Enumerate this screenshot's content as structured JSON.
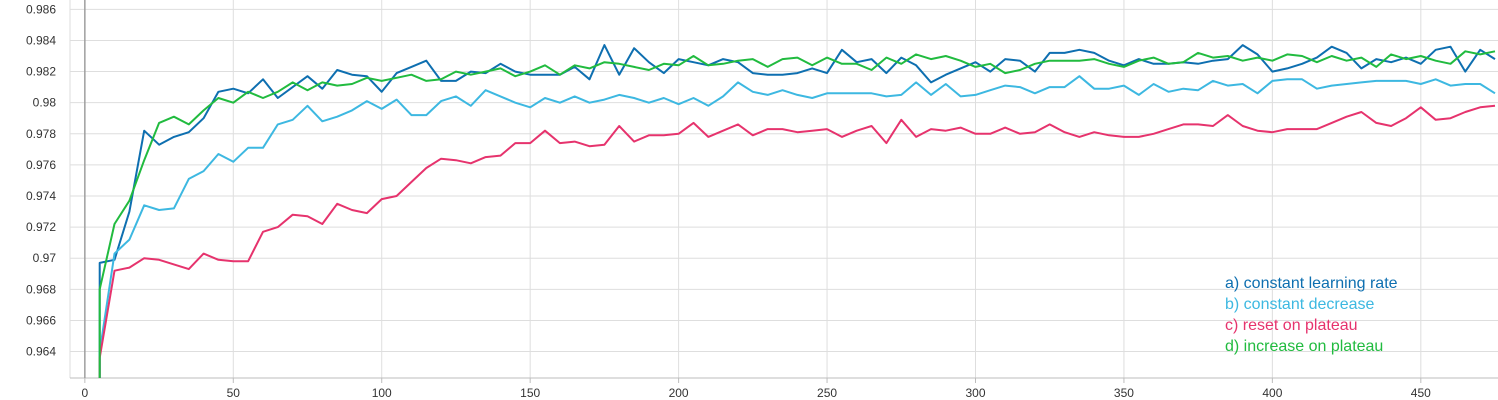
{
  "chart_data": {
    "type": "line",
    "xlim": [
      -5,
      476
    ],
    "ylim": [
      0.9623,
      0.9866
    ],
    "xticks": [
      "0",
      "50",
      "100",
      "150",
      "200",
      "250",
      "300",
      "350",
      "400",
      "450"
    ],
    "yticks": [
      "0.964",
      "0.966",
      "0.968",
      "0.97",
      "0.972",
      "0.974",
      "0.976",
      "0.978",
      "0.98",
      "0.982",
      "0.984",
      "0.986"
    ],
    "grid": true,
    "legend_position": "bottom-right",
    "series": [
      {
        "name": "a) constant learning rate",
        "color": "#0e6fb0",
        "x": [
          5,
          5,
          10,
          15,
          20,
          25,
          30,
          35,
          40,
          45,
          50,
          55,
          60,
          65,
          70,
          75,
          80,
          85,
          90,
          95,
          100,
          105,
          110,
          115,
          120,
          125,
          130,
          135,
          140,
          145,
          150,
          155,
          160,
          165,
          170,
          175,
          180,
          185,
          190,
          195,
          200,
          205,
          210,
          215,
          220,
          225,
          230,
          235,
          240,
          245,
          250,
          255,
          260,
          265,
          270,
          275,
          280,
          285,
          290,
          295,
          300,
          305,
          310,
          315,
          320,
          325,
          330,
          335,
          340,
          345,
          350,
          355,
          360,
          365,
          370,
          375,
          380,
          385,
          390,
          395,
          400,
          405,
          410,
          415,
          420,
          425,
          430,
          435,
          440,
          445,
          450,
          455,
          460,
          465,
          470,
          475
        ],
        "y": [
          0.9623,
          0.9697,
          0.9699,
          0.973,
          0.9782,
          0.9773,
          0.9778,
          0.9781,
          0.979,
          0.9807,
          0.9809,
          0.9806,
          0.9815,
          0.9803,
          0.981,
          0.9817,
          0.9809,
          0.9821,
          0.9818,
          0.9817,
          0.9807,
          0.9819,
          0.9823,
          0.9827,
          0.9814,
          0.9814,
          0.982,
          0.9819,
          0.9825,
          0.982,
          0.9818,
          0.9818,
          0.9818,
          0.9823,
          0.9815,
          0.9837,
          0.9818,
          0.9835,
          0.9826,
          0.9819,
          0.9828,
          0.9826,
          0.9824,
          0.9828,
          0.9826,
          0.9819,
          0.9818,
          0.9818,
          0.9819,
          0.9822,
          0.9819,
          0.9834,
          0.9826,
          0.9828,
          0.9819,
          0.9829,
          0.9824,
          0.9813,
          0.9818,
          0.9822,
          0.9826,
          0.982,
          0.9828,
          0.9827,
          0.982,
          0.9832,
          0.9832,
          0.9834,
          0.9832,
          0.9827,
          0.9824,
          0.9828,
          0.9825,
          0.9825,
          0.9826,
          0.9825,
          0.9827,
          0.9828,
          0.9837,
          0.9831,
          0.982,
          0.9822,
          0.9825,
          0.9829,
          0.9836,
          0.9832,
          0.9822,
          0.9828,
          0.9826,
          0.9829,
          0.9825,
          0.9834,
          0.9836,
          0.982,
          0.9834,
          0.9828
        ]
      },
      {
        "name": "b) constant decrease",
        "color": "#3db8e1",
        "x": [
          5,
          5,
          10,
          15,
          20,
          25,
          30,
          35,
          40,
          45,
          50,
          55,
          60,
          65,
          70,
          75,
          80,
          85,
          90,
          95,
          100,
          105,
          110,
          115,
          120,
          125,
          130,
          135,
          140,
          145,
          150,
          155,
          160,
          165,
          170,
          175,
          180,
          185,
          190,
          195,
          200,
          205,
          210,
          215,
          220,
          225,
          230,
          235,
          240,
          245,
          250,
          255,
          260,
          265,
          270,
          275,
          280,
          285,
          290,
          295,
          300,
          305,
          310,
          315,
          320,
          325,
          330,
          335,
          340,
          345,
          350,
          355,
          360,
          365,
          370,
          375,
          380,
          385,
          390,
          395,
          400,
          405,
          410,
          415,
          420,
          425,
          430,
          435,
          440,
          445,
          450,
          455,
          460,
          465,
          470,
          475
        ],
        "y": [
          0.9623,
          0.964,
          0.9703,
          0.9712,
          0.9734,
          0.9731,
          0.9732,
          0.9751,
          0.9756,
          0.9767,
          0.9762,
          0.9771,
          0.9771,
          0.9786,
          0.9789,
          0.9798,
          0.9788,
          0.9791,
          0.9795,
          0.9801,
          0.9796,
          0.9802,
          0.9792,
          0.9792,
          0.9801,
          0.9804,
          0.9798,
          0.9808,
          0.9804,
          0.98,
          0.9797,
          0.9803,
          0.98,
          0.9804,
          0.98,
          0.9802,
          0.9805,
          0.9803,
          0.98,
          0.9803,
          0.9799,
          0.9803,
          0.9798,
          0.9804,
          0.9813,
          0.9807,
          0.9805,
          0.9808,
          0.9805,
          0.9803,
          0.9806,
          0.9806,
          0.9806,
          0.9806,
          0.9804,
          0.9805,
          0.9813,
          0.9805,
          0.9812,
          0.9804,
          0.9805,
          0.9808,
          0.9811,
          0.981,
          0.9806,
          0.981,
          0.981,
          0.9817,
          0.9809,
          0.9809,
          0.9811,
          0.9805,
          0.9812,
          0.9807,
          0.9809,
          0.9808,
          0.9814,
          0.9811,
          0.9812,
          0.9806,
          0.9814,
          0.9815,
          0.9815,
          0.9809,
          0.9811,
          0.9812,
          0.9813,
          0.9814,
          0.9814,
          0.9814,
          0.9812,
          0.9815,
          0.9811,
          0.9812,
          0.9812,
          0.9806
        ]
      },
      {
        "name": "c) reset on plateau",
        "color": "#e6336d",
        "x": [
          5,
          5,
          10,
          15,
          20,
          25,
          30,
          35,
          40,
          45,
          50,
          55,
          60,
          65,
          70,
          75,
          80,
          85,
          90,
          95,
          100,
          105,
          110,
          115,
          120,
          125,
          130,
          135,
          140,
          145,
          150,
          155,
          160,
          165,
          170,
          175,
          180,
          185,
          190,
          195,
          200,
          205,
          210,
          215,
          220,
          225,
          230,
          235,
          240,
          245,
          250,
          255,
          260,
          265,
          270,
          275,
          280,
          285,
          290,
          295,
          300,
          305,
          310,
          315,
          320,
          325,
          330,
          335,
          340,
          345,
          350,
          355,
          360,
          365,
          370,
          375,
          380,
          385,
          390,
          395,
          400,
          405,
          410,
          415,
          420,
          425,
          430,
          435,
          440,
          445,
          450,
          455,
          460,
          465,
          470,
          475
        ],
        "y": [
          0.9623,
          0.9636,
          0.9692,
          0.9694,
          0.97,
          0.9699,
          0.9696,
          0.9693,
          0.9703,
          0.9699,
          0.9698,
          0.9698,
          0.9717,
          0.972,
          0.9728,
          0.9727,
          0.9722,
          0.9735,
          0.9731,
          0.9729,
          0.9738,
          0.974,
          0.9749,
          0.9758,
          0.9764,
          0.9763,
          0.9761,
          0.9765,
          0.9766,
          0.9774,
          0.9774,
          0.9782,
          0.9774,
          0.9775,
          0.9772,
          0.9773,
          0.9785,
          0.9775,
          0.9779,
          0.9779,
          0.978,
          0.9787,
          0.9778,
          0.9782,
          0.9786,
          0.9779,
          0.9783,
          0.9783,
          0.9781,
          0.9782,
          0.9783,
          0.9778,
          0.9782,
          0.9785,
          0.9774,
          0.9789,
          0.9778,
          0.9783,
          0.9782,
          0.9784,
          0.978,
          0.978,
          0.9784,
          0.978,
          0.9781,
          0.9786,
          0.9781,
          0.9778,
          0.9781,
          0.9779,
          0.9778,
          0.9778,
          0.978,
          0.9783,
          0.9786,
          0.9786,
          0.9785,
          0.9792,
          0.9785,
          0.9782,
          0.9781,
          0.9783,
          0.9783,
          0.9783,
          0.9787,
          0.9791,
          0.9794,
          0.9787,
          0.9785,
          0.979,
          0.9797,
          0.9789,
          0.979,
          0.9794,
          0.9797,
          0.9798
        ]
      },
      {
        "name": "d) increase on plateau",
        "color": "#21bb3f",
        "x": [
          5,
          5,
          10,
          15,
          20,
          25,
          30,
          35,
          40,
          45,
          50,
          55,
          60,
          65,
          70,
          75,
          80,
          85,
          90,
          95,
          100,
          105,
          110,
          115,
          120,
          125,
          130,
          135,
          140,
          145,
          150,
          155,
          160,
          165,
          170,
          175,
          180,
          185,
          190,
          195,
          200,
          205,
          210,
          215,
          220,
          225,
          230,
          235,
          240,
          245,
          250,
          255,
          260,
          265,
          270,
          275,
          280,
          285,
          290,
          295,
          300,
          305,
          310,
          315,
          320,
          325,
          330,
          335,
          340,
          345,
          350,
          355,
          360,
          365,
          370,
          375,
          380,
          385,
          390,
          395,
          400,
          405,
          410,
          415,
          420,
          425,
          430,
          435,
          440,
          445,
          450,
          455,
          460,
          465,
          470,
          475
        ],
        "y": [
          0.9623,
          0.968,
          0.9722,
          0.9737,
          0.9763,
          0.9787,
          0.9791,
          0.9786,
          0.9795,
          0.9803,
          0.98,
          0.9807,
          0.9803,
          0.9807,
          0.9813,
          0.9808,
          0.9813,
          0.9811,
          0.9812,
          0.9816,
          0.9814,
          0.9816,
          0.9818,
          0.9814,
          0.9815,
          0.982,
          0.9818,
          0.982,
          0.9822,
          0.9817,
          0.982,
          0.9824,
          0.9818,
          0.9824,
          0.9822,
          0.9826,
          0.9825,
          0.9823,
          0.9821,
          0.9825,
          0.9824,
          0.983,
          0.9824,
          0.9825,
          0.9827,
          0.9828,
          0.9823,
          0.9828,
          0.9829,
          0.9824,
          0.9829,
          0.9825,
          0.9825,
          0.9821,
          0.9829,
          0.9825,
          0.9831,
          0.9828,
          0.983,
          0.9827,
          0.9823,
          0.9825,
          0.9819,
          0.9821,
          0.9825,
          0.9827,
          0.9827,
          0.9827,
          0.9828,
          0.9825,
          0.9823,
          0.9827,
          0.9829,
          0.9825,
          0.9826,
          0.9832,
          0.9829,
          0.983,
          0.9827,
          0.9829,
          0.9827,
          0.9831,
          0.983,
          0.9826,
          0.983,
          0.9827,
          0.9829,
          0.9823,
          0.9831,
          0.9828,
          0.983,
          0.9827,
          0.9825,
          0.9833,
          0.9831,
          0.9833
        ]
      }
    ]
  }
}
